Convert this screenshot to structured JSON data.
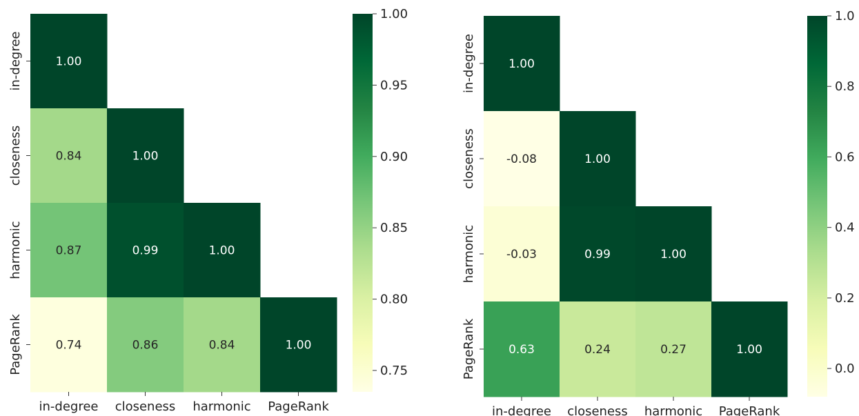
{
  "chart_data": [
    {
      "type": "heatmap",
      "labels": [
        "in-degree",
        "closeness",
        "harmonic",
        "PageRank"
      ],
      "matrix": [
        [
          1.0,
          null,
          null,
          null
        ],
        [
          0.84,
          1.0,
          null,
          null
        ],
        [
          0.87,
          0.99,
          1.0,
          null
        ],
        [
          0.74,
          0.86,
          0.84,
          1.0
        ]
      ],
      "cell_labels": [
        [
          "1.00",
          "",
          "",
          ""
        ],
        [
          "0.84",
          "1.00",
          "",
          ""
        ],
        [
          "0.87",
          "0.99",
          "1.00",
          ""
        ],
        [
          "0.74",
          "0.86",
          "0.84",
          "1.00"
        ]
      ],
      "colorbar": {
        "range": [
          0.735,
          1.0
        ],
        "ticks": [
          1.0,
          0.95,
          0.9,
          0.85,
          0.8,
          0.75
        ],
        "tick_labels": [
          "1.00",
          "0.95",
          "0.90",
          "0.85",
          "0.80",
          "0.75"
        ]
      },
      "colormap": "YlGn"
    },
    {
      "type": "heatmap",
      "labels": [
        "in-degree",
        "closeness",
        "harmonic",
        "PageRank"
      ],
      "matrix": [
        [
          1.0,
          null,
          null,
          null
        ],
        [
          -0.08,
          1.0,
          null,
          null
        ],
        [
          -0.03,
          0.99,
          1.0,
          null
        ],
        [
          0.63,
          0.24,
          0.27,
          1.0
        ]
      ],
      "cell_labels": [
        [
          "1.00",
          "",
          "",
          ""
        ],
        [
          "-0.08",
          "1.00",
          "",
          ""
        ],
        [
          "-0.03",
          "0.99",
          "1.00",
          ""
        ],
        [
          "0.63",
          "0.24",
          "0.27",
          "1.00"
        ]
      ],
      "colorbar": {
        "range": [
          -0.08,
          1.0
        ],
        "ticks": [
          1.0,
          0.8,
          0.6,
          0.4,
          0.2,
          0.0
        ],
        "tick_labels": [
          "1.0",
          "0.8",
          "0.6",
          "0.4",
          "0.2",
          "0.0"
        ]
      },
      "colormap": "YlGn"
    }
  ]
}
